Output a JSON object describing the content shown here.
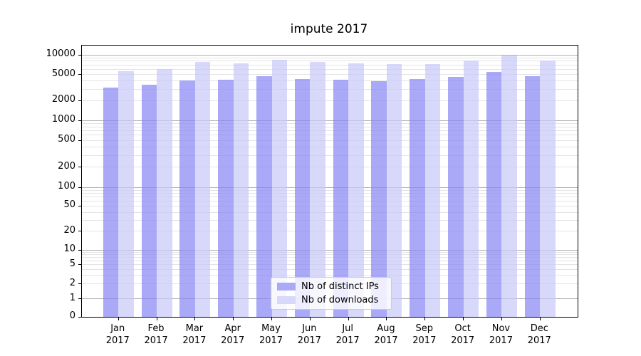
{
  "title": "impute 2017",
  "chart_data": {
    "type": "bar",
    "title": "impute 2017",
    "yscale": "symlog",
    "grid": true,
    "legend_position": "lower center",
    "ylim": [
      0,
      14000
    ],
    "y_ticks": [
      0,
      1,
      2,
      5,
      10,
      20,
      50,
      100,
      200,
      500,
      1000,
      2000,
      5000,
      10000
    ],
    "categories": [
      "Jan 2017",
      "Feb 2017",
      "Mar 2017",
      "Apr 2017",
      "May 2017",
      "Jun 2017",
      "Jul 2017",
      "Aug 2017",
      "Sep 2017",
      "Oct 2017",
      "Nov 2017",
      "Dec 2017"
    ],
    "month_labels": [
      "Jan",
      "Feb",
      "Mar",
      "Apr",
      "May",
      "Jun",
      "Jul",
      "Aug",
      "Sep",
      "Oct",
      "Nov",
      "Dec"
    ],
    "year_label": "2017",
    "series": [
      {
        "name": "Nb of distinct IPs",
        "color": "#a9a9f8",
        "fill": "rgba(132,132,245,0.7)",
        "values": [
          3150,
          3500,
          4050,
          4150,
          4750,
          4270,
          4150,
          3950,
          4270,
          4600,
          5500,
          4750
        ]
      },
      {
        "name": "Nb of downloads",
        "color": "#d8d8fa",
        "fill": "rgba(199,199,248,0.7)",
        "values": [
          5600,
          6100,
          7800,
          7400,
          8400,
          7700,
          7400,
          7250,
          7250,
          8200,
          9750,
          8200
        ]
      }
    ]
  },
  "colors": {
    "major_grid": "#b0b0b0",
    "minor_grid": "#e4e4e4",
    "spine": "#000000",
    "background": "#ffffff"
  }
}
